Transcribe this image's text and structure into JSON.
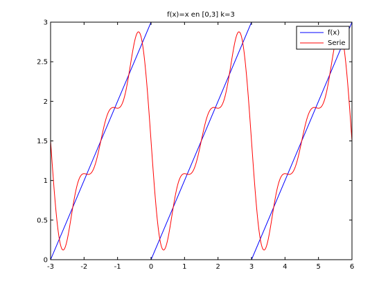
{
  "chart_data": {
    "type": "line",
    "title": "f(x)=x en [0,3] k=3",
    "xlabel": "",
    "ylabel": "",
    "xlim": [
      -3,
      6
    ],
    "ylim": [
      0,
      3
    ],
    "xticks": [
      "-3",
      "-2",
      "-1",
      "0",
      "1",
      "2",
      "3",
      "4",
      "5",
      "6"
    ],
    "yticks": [
      "0",
      "0.5",
      "1",
      "1.5",
      "2",
      "2.5",
      "3"
    ],
    "grid": false,
    "legend": "top-right",
    "period": 3,
    "harmonics": 3,
    "series": [
      {
        "name": "f(x)",
        "color": "#0000ff",
        "kind": "sawtooth"
      },
      {
        "name": "Serie",
        "color": "#ff0000",
        "kind": "fourier"
      }
    ]
  }
}
